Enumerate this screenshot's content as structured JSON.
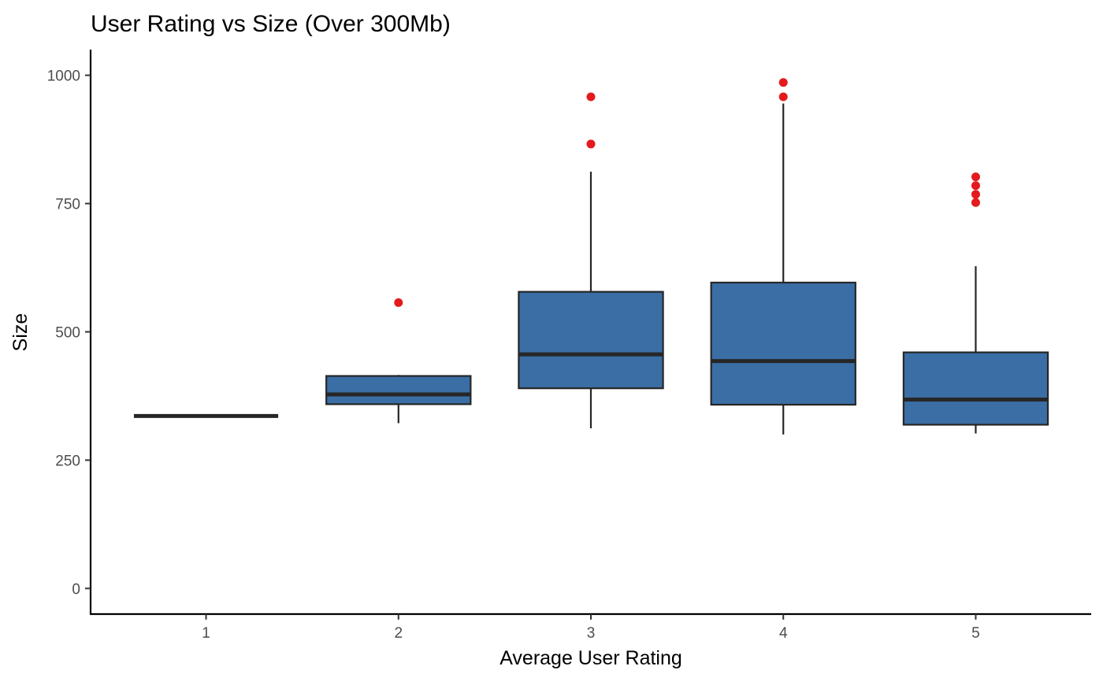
{
  "chart_data": {
    "type": "boxplot",
    "title": "User Rating vs Size (Over 300Mb)",
    "xlabel": "Average User Rating",
    "ylabel": "Size",
    "categories": [
      "1",
      "2",
      "3",
      "4",
      "5"
    ],
    "yticks": [
      0,
      250,
      500,
      750,
      1000
    ],
    "ylim": [
      -50,
      1050
    ],
    "grid": false,
    "legend": "none",
    "colors": {
      "box_fill": "#3a6ea5",
      "box_stroke": "#262626",
      "median": "#262626",
      "whisker": "#262626",
      "outlier": "#e41a1c"
    },
    "boxes": [
      {
        "category": "1",
        "min": 336,
        "q1": 336,
        "median": 336,
        "q3": 336,
        "max": 336,
        "outliers": []
      },
      {
        "category": "2",
        "min": 322,
        "q1": 359,
        "median": 378,
        "q3": 414,
        "max": 416,
        "outliers": [
          557
        ]
      },
      {
        "category": "3",
        "min": 312,
        "q1": 390,
        "median": 456,
        "q3": 578,
        "max": 812,
        "outliers": [
          866,
          958
        ]
      },
      {
        "category": "4",
        "min": 300,
        "q1": 358,
        "median": 443,
        "q3": 596,
        "max": 945,
        "outliers": [
          958,
          986
        ]
      },
      {
        "category": "5",
        "min": 302,
        "q1": 319,
        "median": 368,
        "q3": 460,
        "max": 628,
        "outliers": [
          752,
          768,
          785,
          802
        ]
      }
    ]
  }
}
